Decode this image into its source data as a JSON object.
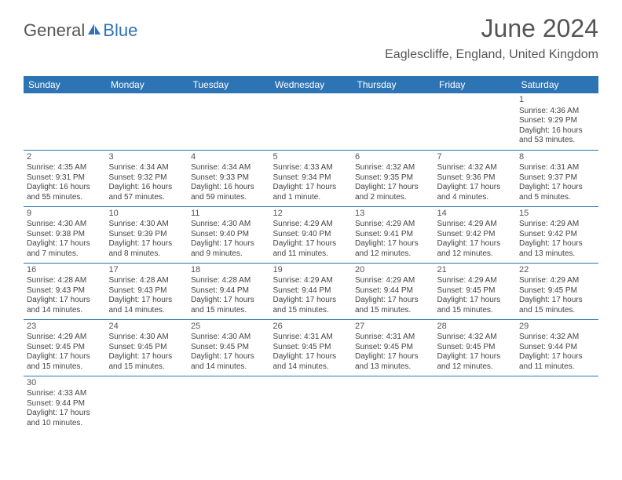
{
  "logo": {
    "part1": "General",
    "part2": "Blue"
  },
  "title": "June 2024",
  "location": "Eaglescliffe, England, United Kingdom",
  "colors": {
    "header_bg": "#2d74b5",
    "header_text": "#ffffff",
    "border": "#2d74b5",
    "text": "#444444"
  },
  "dayHeaders": [
    "Sunday",
    "Monday",
    "Tuesday",
    "Wednesday",
    "Thursday",
    "Friday",
    "Saturday"
  ],
  "weeks": [
    [
      null,
      null,
      null,
      null,
      null,
      null,
      {
        "n": "1",
        "sr": "Sunrise: 4:36 AM",
        "ss": "Sunset: 9:29 PM",
        "dl": "Daylight: 16 hours and 53 minutes."
      }
    ],
    [
      {
        "n": "2",
        "sr": "Sunrise: 4:35 AM",
        "ss": "Sunset: 9:31 PM",
        "dl": "Daylight: 16 hours and 55 minutes."
      },
      {
        "n": "3",
        "sr": "Sunrise: 4:34 AM",
        "ss": "Sunset: 9:32 PM",
        "dl": "Daylight: 16 hours and 57 minutes."
      },
      {
        "n": "4",
        "sr": "Sunrise: 4:34 AM",
        "ss": "Sunset: 9:33 PM",
        "dl": "Daylight: 16 hours and 59 minutes."
      },
      {
        "n": "5",
        "sr": "Sunrise: 4:33 AM",
        "ss": "Sunset: 9:34 PM",
        "dl": "Daylight: 17 hours and 1 minute."
      },
      {
        "n": "6",
        "sr": "Sunrise: 4:32 AM",
        "ss": "Sunset: 9:35 PM",
        "dl": "Daylight: 17 hours and 2 minutes."
      },
      {
        "n": "7",
        "sr": "Sunrise: 4:32 AM",
        "ss": "Sunset: 9:36 PM",
        "dl": "Daylight: 17 hours and 4 minutes."
      },
      {
        "n": "8",
        "sr": "Sunrise: 4:31 AM",
        "ss": "Sunset: 9:37 PM",
        "dl": "Daylight: 17 hours and 5 minutes."
      }
    ],
    [
      {
        "n": "9",
        "sr": "Sunrise: 4:30 AM",
        "ss": "Sunset: 9:38 PM",
        "dl": "Daylight: 17 hours and 7 minutes."
      },
      {
        "n": "10",
        "sr": "Sunrise: 4:30 AM",
        "ss": "Sunset: 9:39 PM",
        "dl": "Daylight: 17 hours and 8 minutes."
      },
      {
        "n": "11",
        "sr": "Sunrise: 4:30 AM",
        "ss": "Sunset: 9:40 PM",
        "dl": "Daylight: 17 hours and 9 minutes."
      },
      {
        "n": "12",
        "sr": "Sunrise: 4:29 AM",
        "ss": "Sunset: 9:40 PM",
        "dl": "Daylight: 17 hours and 11 minutes."
      },
      {
        "n": "13",
        "sr": "Sunrise: 4:29 AM",
        "ss": "Sunset: 9:41 PM",
        "dl": "Daylight: 17 hours and 12 minutes."
      },
      {
        "n": "14",
        "sr": "Sunrise: 4:29 AM",
        "ss": "Sunset: 9:42 PM",
        "dl": "Daylight: 17 hours and 12 minutes."
      },
      {
        "n": "15",
        "sr": "Sunrise: 4:29 AM",
        "ss": "Sunset: 9:42 PM",
        "dl": "Daylight: 17 hours and 13 minutes."
      }
    ],
    [
      {
        "n": "16",
        "sr": "Sunrise: 4:28 AM",
        "ss": "Sunset: 9:43 PM",
        "dl": "Daylight: 17 hours and 14 minutes."
      },
      {
        "n": "17",
        "sr": "Sunrise: 4:28 AM",
        "ss": "Sunset: 9:43 PM",
        "dl": "Daylight: 17 hours and 14 minutes."
      },
      {
        "n": "18",
        "sr": "Sunrise: 4:28 AM",
        "ss": "Sunset: 9:44 PM",
        "dl": "Daylight: 17 hours and 15 minutes."
      },
      {
        "n": "19",
        "sr": "Sunrise: 4:29 AM",
        "ss": "Sunset: 9:44 PM",
        "dl": "Daylight: 17 hours and 15 minutes."
      },
      {
        "n": "20",
        "sr": "Sunrise: 4:29 AM",
        "ss": "Sunset: 9:44 PM",
        "dl": "Daylight: 17 hours and 15 minutes."
      },
      {
        "n": "21",
        "sr": "Sunrise: 4:29 AM",
        "ss": "Sunset: 9:45 PM",
        "dl": "Daylight: 17 hours and 15 minutes."
      },
      {
        "n": "22",
        "sr": "Sunrise: 4:29 AM",
        "ss": "Sunset: 9:45 PM",
        "dl": "Daylight: 17 hours and 15 minutes."
      }
    ],
    [
      {
        "n": "23",
        "sr": "Sunrise: 4:29 AM",
        "ss": "Sunset: 9:45 PM",
        "dl": "Daylight: 17 hours and 15 minutes."
      },
      {
        "n": "24",
        "sr": "Sunrise: 4:30 AM",
        "ss": "Sunset: 9:45 PM",
        "dl": "Daylight: 17 hours and 15 minutes."
      },
      {
        "n": "25",
        "sr": "Sunrise: 4:30 AM",
        "ss": "Sunset: 9:45 PM",
        "dl": "Daylight: 17 hours and 14 minutes."
      },
      {
        "n": "26",
        "sr": "Sunrise: 4:31 AM",
        "ss": "Sunset: 9:45 PM",
        "dl": "Daylight: 17 hours and 14 minutes."
      },
      {
        "n": "27",
        "sr": "Sunrise: 4:31 AM",
        "ss": "Sunset: 9:45 PM",
        "dl": "Daylight: 17 hours and 13 minutes."
      },
      {
        "n": "28",
        "sr": "Sunrise: 4:32 AM",
        "ss": "Sunset: 9:45 PM",
        "dl": "Daylight: 17 hours and 12 minutes."
      },
      {
        "n": "29",
        "sr": "Sunrise: 4:32 AM",
        "ss": "Sunset: 9:44 PM",
        "dl": "Daylight: 17 hours and 11 minutes."
      }
    ],
    [
      {
        "n": "30",
        "sr": "Sunrise: 4:33 AM",
        "ss": "Sunset: 9:44 PM",
        "dl": "Daylight: 17 hours and 10 minutes."
      },
      null,
      null,
      null,
      null,
      null,
      null
    ]
  ]
}
